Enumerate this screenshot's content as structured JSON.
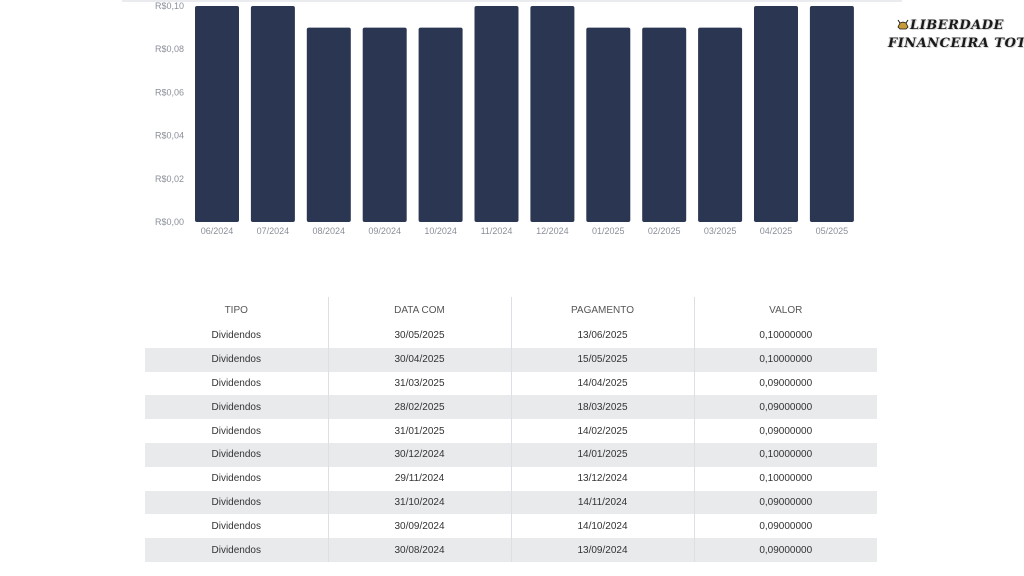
{
  "chart_data": {
    "type": "bar",
    "categories": [
      "06/2024",
      "07/2024",
      "08/2024",
      "09/2024",
      "10/2024",
      "11/2024",
      "12/2024",
      "01/2025",
      "02/2025",
      "03/2025",
      "04/2025",
      "05/2025"
    ],
    "values": [
      0.1,
      0.1,
      0.09,
      0.09,
      0.09,
      0.1,
      0.1,
      0.09,
      0.09,
      0.09,
      0.1,
      0.1
    ],
    "y_ticks": [
      "R$0,00",
      "R$0,02",
      "R$0,04",
      "R$0,06",
      "R$0,08",
      "R$0,10"
    ],
    "ylim": [
      0,
      0.1
    ],
    "bar_color": "#2b3752",
    "grid": false
  },
  "logo": {
    "line1": "LIBERDADE",
    "line2": "FINANCEIRA TOTAL"
  },
  "table": {
    "headers": [
      "TIPO",
      "DATA COM",
      "PAGAMENTO",
      "VALOR"
    ],
    "rows": [
      [
        "Dividendos",
        "30/05/2025",
        "13/06/2025",
        "0,10000000"
      ],
      [
        "Dividendos",
        "30/04/2025",
        "15/05/2025",
        "0,10000000"
      ],
      [
        "Dividendos",
        "31/03/2025",
        "14/04/2025",
        "0,09000000"
      ],
      [
        "Dividendos",
        "28/02/2025",
        "18/03/2025",
        "0,09000000"
      ],
      [
        "Dividendos",
        "31/01/2025",
        "14/02/2025",
        "0,09000000"
      ],
      [
        "Dividendos",
        "30/12/2024",
        "14/01/2025",
        "0,10000000"
      ],
      [
        "Dividendos",
        "29/11/2024",
        "13/12/2024",
        "0,10000000"
      ],
      [
        "Dividendos",
        "31/10/2024",
        "14/11/2024",
        "0,09000000"
      ],
      [
        "Dividendos",
        "30/09/2024",
        "14/10/2024",
        "0,09000000"
      ],
      [
        "Dividendos",
        "30/08/2024",
        "13/09/2024",
        "0,09000000"
      ]
    ]
  }
}
